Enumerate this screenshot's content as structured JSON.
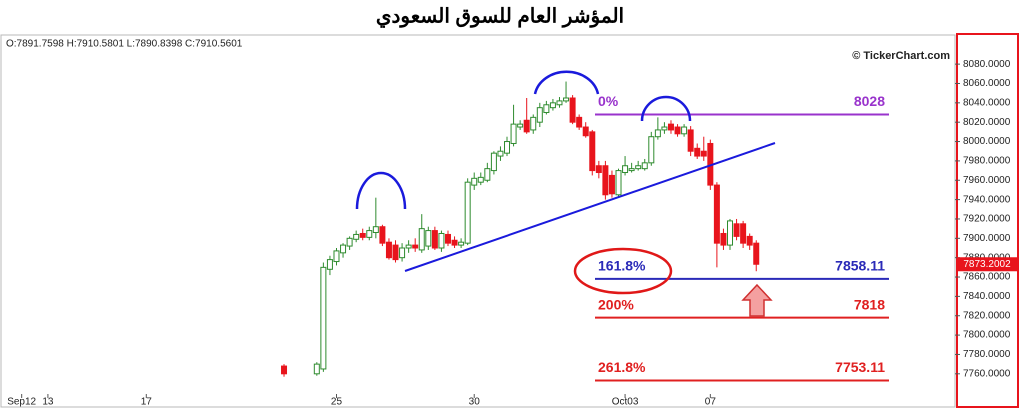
{
  "chart_data": {
    "type": "candlestick",
    "title": "المؤشر العام للسوق السعودي",
    "ohlc_label": "O:7891.7598 H:7910.5801 L:7890.8398 C:7910.5601",
    "watermark": "© TickerChart.com",
    "up_color": "#2e8b2e",
    "down_color": "#e8141c",
    "x": [
      43,
      48,
      49,
      50,
      51,
      52,
      53,
      54,
      55,
      56,
      57,
      58,
      59,
      60,
      61,
      62,
      63,
      64,
      65,
      66,
      67,
      68,
      69,
      70,
      71,
      72,
      73,
      74,
      75,
      76,
      77,
      78,
      79,
      80,
      81,
      82,
      83,
      84,
      85,
      86,
      87,
      88,
      89,
      90,
      91,
      92,
      93,
      94,
      95,
      96,
      97,
      98,
      99,
      100,
      101,
      102,
      103,
      104,
      105,
      106,
      107,
      108,
      109,
      110,
      111,
      112,
      113,
      114,
      115
    ],
    "open": [
      7768,
      7760,
      7765,
      7868,
      7876,
      7885,
      7892,
      7899,
      7905,
      7901,
      7906,
      7912,
      7896,
      7893,
      7880,
      7890,
      7893,
      7888,
      7892,
      7908,
      7890,
      7904,
      7898,
      7893,
      7895,
      7955,
      7958,
      7960,
      7970,
      7985,
      7988,
      7998,
      8015,
      8022,
      8012,
      8020,
      8030,
      8035,
      8038,
      8042,
      8045,
      8025,
      8015,
      8010,
      7975,
      7975,
      7965,
      7945,
      7968,
      7970,
      7972,
      7972,
      7978,
      8005,
      8012,
      8018,
      8015,
      8008,
      8012,
      7993,
      7990,
      7998,
      7955,
      7905,
      7893,
      7915,
      7915,
      7902,
      7895
    ],
    "high": [
      7770,
      7772,
      7875,
      7882,
      7890,
      7895,
      7902,
      7908,
      7910,
      7912,
      7942,
      7914,
      7900,
      7898,
      7895,
      7898,
      7900,
      7925,
      7912,
      7912,
      7908,
      7908,
      7902,
      7900,
      7962,
      7968,
      7968,
      7978,
      7990,
      7995,
      8005,
      8038,
      8022,
      8045,
      8028,
      8040,
      8042,
      8044,
      8046,
      8062,
      8048,
      8028,
      8020,
      8012,
      7980,
      7980,
      7970,
      7972,
      7985,
      7978,
      7980,
      7982,
      8010,
      8025,
      8020,
      8022,
      8018,
      8018,
      8016,
      7998,
      8005,
      8002,
      7958,
      7910,
      7920,
      7920,
      7918,
      7905,
      7898
    ],
    "low": [
      7757,
      7758,
      7762,
      7862,
      7872,
      7880,
      7888,
      7896,
      7898,
      7898,
      7900,
      7892,
      7878,
      7875,
      7876,
      7885,
      7886,
      7885,
      7888,
      7888,
      7886,
      7892,
      7890,
      7890,
      7893,
      7950,
      7955,
      7958,
      7966,
      7980,
      7985,
      7995,
      8012,
      8008,
      8008,
      8015,
      8028,
      8032,
      8035,
      8040,
      8018,
      8012,
      8004,
      7965,
      7962,
      7940,
      7942,
      7942,
      7965,
      7968,
      7970,
      7970,
      7975,
      8002,
      8008,
      8008,
      8005,
      8005,
      7985,
      7982,
      7980,
      7950,
      7870,
      7888,
      7888,
      7898,
      7890,
      7888,
      7866
    ],
    "close": [
      7760,
      7770,
      7870,
      7878,
      7887,
      7893,
      7900,
      7904,
      7901,
      7908,
      7912,
      7895,
      7880,
      7878,
      7890,
      7893,
      7890,
      7910,
      7908,
      7890,
      7905,
      7895,
      7893,
      7896,
      7958,
      7962,
      7963,
      7972,
      7988,
      7990,
      8000,
      8018,
      8018,
      8010,
      8025,
      8035,
      8038,
      8040,
      8042,
      8045,
      8020,
      8015,
      8006,
      7970,
      7968,
      7945,
      7946,
      7970,
      7975,
      7972,
      7975,
      7978,
      8005,
      8012,
      8015,
      8012,
      8008,
      8015,
      7990,
      7985,
      7985,
      7955,
      7895,
      7893,
      7918,
      7902,
      7895,
      7893,
      7873.2002
    ],
    "xlim": [
      0,
      145
    ],
    "xticks": [
      {
        "value": 3,
        "label": "Sep12"
      },
      {
        "value": 7,
        "label": "13"
      },
      {
        "value": 22,
        "label": "17"
      },
      {
        "value": 51,
        "label": "25"
      },
      {
        "value": 72,
        "label": "30"
      },
      {
        "value": 95,
        "label": "Oct03"
      },
      {
        "value": 108,
        "label": "07"
      }
    ],
    "ylim": [
      7735,
      8107
    ],
    "yticks": [
      {
        "value": 7760,
        "label": "7760.0000"
      },
      {
        "value": 7780,
        "label": "7780.0000"
      },
      {
        "value": 7800,
        "label": "7800.0000"
      },
      {
        "value": 7820,
        "label": "7820.0000"
      },
      {
        "value": 7840,
        "label": "7840.0000"
      },
      {
        "value": 7860,
        "label": "7860.0000"
      },
      {
        "value": 7880,
        "label": "7880.0000"
      },
      {
        "value": 7900,
        "label": "7900.0000"
      },
      {
        "value": 7920,
        "label": "7920.0000"
      },
      {
        "value": 7940,
        "label": "7940.0000"
      },
      {
        "value": 7960,
        "label": "7960.0000"
      },
      {
        "value": 7980,
        "label": "7980.0000"
      },
      {
        "value": 8000,
        "label": "8000.0000"
      },
      {
        "value": 8020,
        "label": "8020.0000"
      },
      {
        "value": 8040,
        "label": "8040.0000"
      },
      {
        "value": 8060,
        "label": "8060.0000"
      },
      {
        "value": 8080,
        "label": "8080.0000"
      }
    ],
    "last_price": 7873.2002,
    "fib_levels": [
      {
        "label": "0%",
        "value": 8028,
        "color": "#9933cc"
      },
      {
        "label": "161.8%",
        "value": 7858.11,
        "color": "#2a2ab8"
      },
      {
        "label": "200%",
        "value": 7818,
        "color": "#e02020"
      },
      {
        "label": "261.8%",
        "value": 7753.11,
        "color": "#e02020"
      }
    ]
  }
}
